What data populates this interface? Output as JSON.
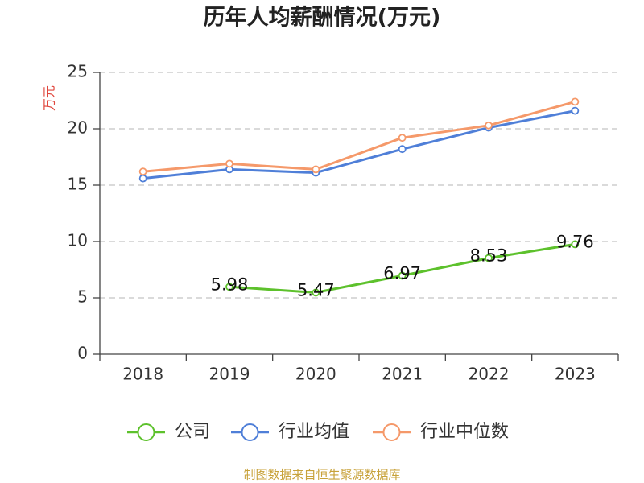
{
  "chart_data": {
    "type": "line",
    "title": "历年人均薪酬情况(万元)",
    "xlabel": "",
    "ylabel": "万元",
    "categories": [
      "2018",
      "2019",
      "2020",
      "2021",
      "2022",
      "2023"
    ],
    "ylim": [
      0,
      25
    ],
    "yticks": [
      0,
      5,
      10,
      15,
      20,
      25
    ],
    "grid": true,
    "legend_position": "bottom",
    "series": [
      {
        "name": "公司",
        "color": "#5dc12c",
        "data_labels": true,
        "values": [
          null,
          5.98,
          5.47,
          6.97,
          8.53,
          9.76
        ]
      },
      {
        "name": "行业均值",
        "color": "#4f7fd8",
        "data_labels": false,
        "values": [
          15.6,
          16.4,
          16.1,
          18.2,
          20.1,
          21.6
        ]
      },
      {
        "name": "行业中位数",
        "color": "#f5996a",
        "data_labels": false,
        "values": [
          16.2,
          16.9,
          16.4,
          19.2,
          20.3,
          22.4
        ]
      }
    ]
  },
  "colors": {
    "ylabel": "#e0463c",
    "source_note": "#c8a23a"
  },
  "source_note": "制图数据来自恒生聚源数据库"
}
